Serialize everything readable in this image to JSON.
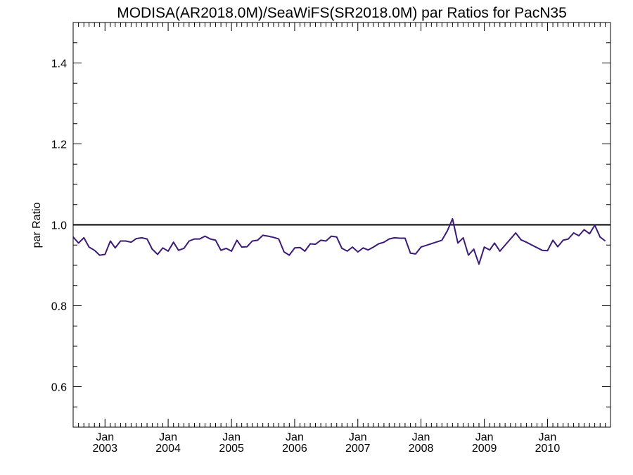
{
  "chart_data": {
    "type": "line",
    "title": "MODISA(AR2018.0M)/SeaWiFS(SR2018.0M)  par Ratios for PacN35",
    "xlabel": "",
    "ylabel": "par Ratio",
    "ylim": [
      0.5,
      1.5
    ],
    "xlim": [
      "2002-07-01",
      "2010-12-31"
    ],
    "yticks": [
      {
        "value": 0.6,
        "label": "0.6"
      },
      {
        "value": 0.8,
        "label": "0.8"
      },
      {
        "value": 1.0,
        "label": "1.0"
      },
      {
        "value": 1.2,
        "label": "1.2"
      },
      {
        "value": 1.4,
        "label": "1.4"
      }
    ],
    "xticks": [
      {
        "date": "2003-01-01",
        "month": "Jan",
        "year": "2003"
      },
      {
        "date": "2004-01-01",
        "month": "Jan",
        "year": "2004"
      },
      {
        "date": "2005-01-01",
        "month": "Jan",
        "year": "2005"
      },
      {
        "date": "2006-01-01",
        "month": "Jan",
        "year": "2006"
      },
      {
        "date": "2007-01-01",
        "month": "Jan",
        "year": "2007"
      },
      {
        "date": "2008-01-01",
        "month": "Jan",
        "year": "2008"
      },
      {
        "date": "2009-01-01",
        "month": "Jan",
        "year": "2009"
      },
      {
        "date": "2010-01-01",
        "month": "Jan",
        "year": "2010"
      }
    ],
    "reference_line": 1.0,
    "grid": false,
    "colors": {
      "series": "#3b1a78",
      "axes": "#000000"
    },
    "series": [
      {
        "x": [
          "2002-07-01",
          "2002-08-01",
          "2002-09-01",
          "2002-10-01",
          "2002-11-01",
          "2002-12-01",
          "2003-01-01",
          "2003-02-01",
          "2003-03-01",
          "2003-04-01",
          "2003-05-01",
          "2003-06-01",
          "2003-07-01",
          "2003-08-01",
          "2003-09-01",
          "2003-10-01",
          "2003-11-01",
          "2003-12-01",
          "2004-01-01",
          "2004-02-01",
          "2004-03-01",
          "2004-04-01",
          "2004-05-01",
          "2004-06-01",
          "2004-07-01",
          "2004-08-01",
          "2004-09-01",
          "2004-10-01",
          "2004-11-01",
          "2004-12-01",
          "2005-01-01",
          "2005-02-01",
          "2005-03-01",
          "2005-04-01",
          "2005-05-01",
          "2005-06-01",
          "2005-07-01",
          "2005-08-01",
          "2005-09-01",
          "2005-10-01",
          "2005-11-01",
          "2005-12-01",
          "2006-01-01",
          "2006-02-01",
          "2006-03-01",
          "2006-04-01",
          "2006-05-01",
          "2006-06-01",
          "2006-07-01",
          "2006-08-01",
          "2006-09-01",
          "2006-10-01",
          "2006-11-01",
          "2006-12-01",
          "2007-01-01",
          "2007-02-01",
          "2007-03-01",
          "2007-04-01",
          "2007-05-01",
          "2007-06-01",
          "2007-07-01",
          "2007-08-01",
          "2007-09-01",
          "2007-10-01",
          "2007-11-01",
          "2007-12-01",
          "2008-01-01",
          "2008-05-01",
          "2008-06-01",
          "2008-07-01",
          "2008-08-01",
          "2008-09-01",
          "2008-10-01",
          "2008-11-01",
          "2008-12-01",
          "2009-01-01",
          "2009-02-01",
          "2009-03-01",
          "2009-04-01",
          "2009-07-01",
          "2009-08-01",
          "2009-09-01",
          "2009-12-01",
          "2010-01-01",
          "2010-02-01",
          "2010-03-01",
          "2010-04-01",
          "2010-05-01",
          "2010-06-01",
          "2010-07-01",
          "2010-08-01",
          "2010-09-01",
          "2010-10-01",
          "2010-11-01",
          "2010-12-01"
        ],
        "y": [
          0.97,
          0.955,
          0.968,
          0.945,
          0.937,
          0.925,
          0.927,
          0.96,
          0.943,
          0.96,
          0.96,
          0.957,
          0.966,
          0.968,
          0.965,
          0.94,
          0.927,
          0.943,
          0.935,
          0.957,
          0.937,
          0.942,
          0.96,
          0.965,
          0.965,
          0.972,
          0.965,
          0.962,
          0.937,
          0.942,
          0.935,
          0.962,
          0.945,
          0.946,
          0.96,
          0.962,
          0.974,
          0.972,
          0.969,
          0.965,
          0.933,
          0.925,
          0.943,
          0.944,
          0.935,
          0.953,
          0.952,
          0.962,
          0.96,
          0.972,
          0.97,
          0.942,
          0.935,
          0.945,
          0.933,
          0.943,
          0.938,
          0.945,
          0.953,
          0.957,
          0.965,
          0.968,
          0.967,
          0.967,
          0.93,
          0.928,
          0.945,
          0.962,
          0.985,
          1.015,
          0.955,
          0.968,
          0.925,
          0.94,
          0.903,
          0.945,
          0.938,
          0.955,
          0.935,
          0.98,
          0.963,
          0.957,
          0.937,
          0.936,
          0.962,
          0.946,
          0.962,
          0.965,
          0.98,
          0.973,
          0.988,
          0.978,
          0.999,
          0.97,
          0.96
        ]
      }
    ]
  }
}
